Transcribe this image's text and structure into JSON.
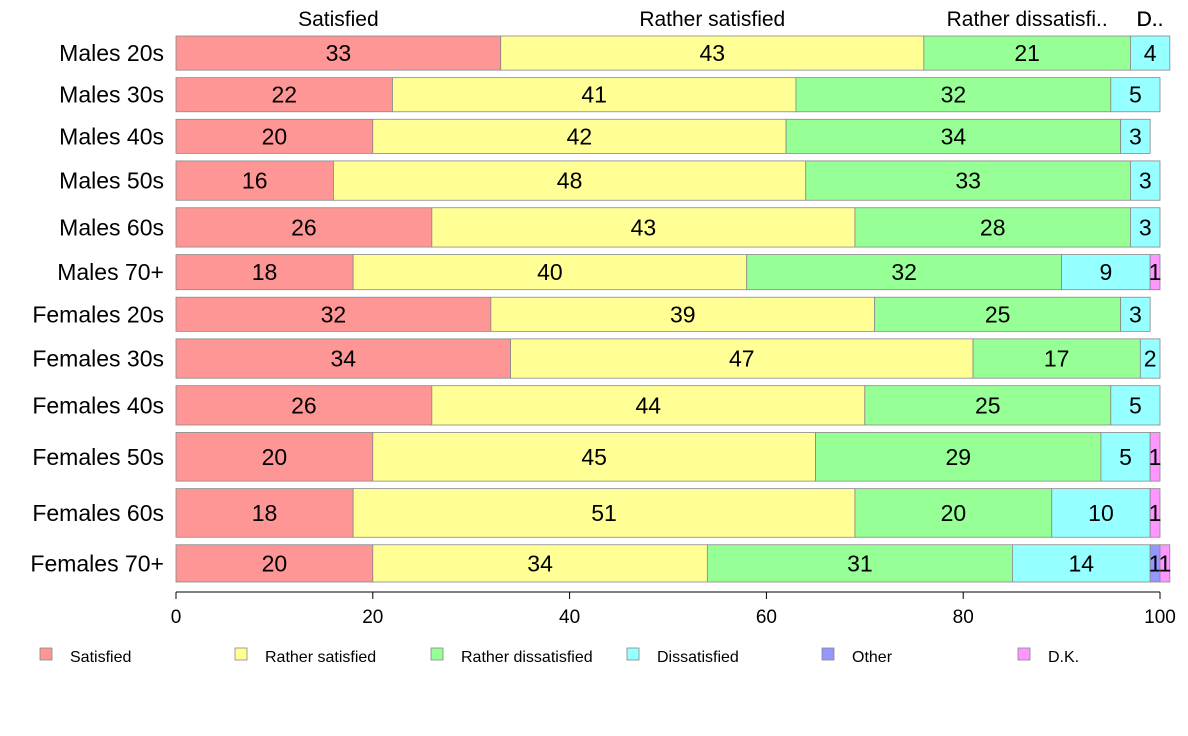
{
  "chart_data": {
    "type": "bar",
    "orientation": "horizontal",
    "stacked": true,
    "categories": [
      "Males 20s",
      "Males 30s",
      "Males 40s",
      "Males 50s",
      "Males 60s",
      "Males 70+",
      "Females 20s",
      "Females 30s",
      "Females 40s",
      "Females 50s",
      "Females 60s",
      "Females 70+"
    ],
    "series": [
      {
        "name": "Satisfied",
        "color": "#FF9696",
        "values": [
          33,
          22,
          20,
          16,
          26,
          18,
          32,
          34,
          26,
          20,
          18,
          20
        ]
      },
      {
        "name": "Rather satisfied",
        "color": "#FFFF96",
        "values": [
          43,
          41,
          42,
          48,
          43,
          40,
          39,
          47,
          44,
          45,
          51,
          34
        ]
      },
      {
        "name": "Rather dissatisfied",
        "color": "#96FF96",
        "values": [
          21,
          32,
          34,
          33,
          28,
          32,
          25,
          17,
          25,
          29,
          20,
          31
        ]
      },
      {
        "name": "Dissatisfied",
        "color": "#96FFFF",
        "values": [
          4,
          5,
          3,
          3,
          3,
          9,
          3,
          2,
          5,
          5,
          10,
          14
        ]
      },
      {
        "name": "Other",
        "color": "#9696FF",
        "values": [
          0,
          0,
          0,
          0,
          0,
          0,
          0,
          0,
          0,
          0,
          0,
          1
        ]
      },
      {
        "name": "D.K.",
        "color": "#FF96FF",
        "values": [
          0,
          0,
          0,
          0,
          0,
          1,
          0,
          0,
          0,
          1,
          1,
          1
        ]
      }
    ],
    "bar_thickness_weights": [
      33,
      33,
      33,
      38,
      38,
      34,
      33,
      38,
      38,
      47,
      47,
      36
    ],
    "top_labels": [
      "Satisfied",
      "Rather satisfied",
      "Rather dissatisfi..",
      "D..",
      "D..",
      "D.."
    ],
    "xlim": [
      0,
      100
    ],
    "xticks": [
      0,
      20,
      40,
      60,
      80,
      100
    ],
    "grid": false,
    "legend_position": "bottom"
  }
}
